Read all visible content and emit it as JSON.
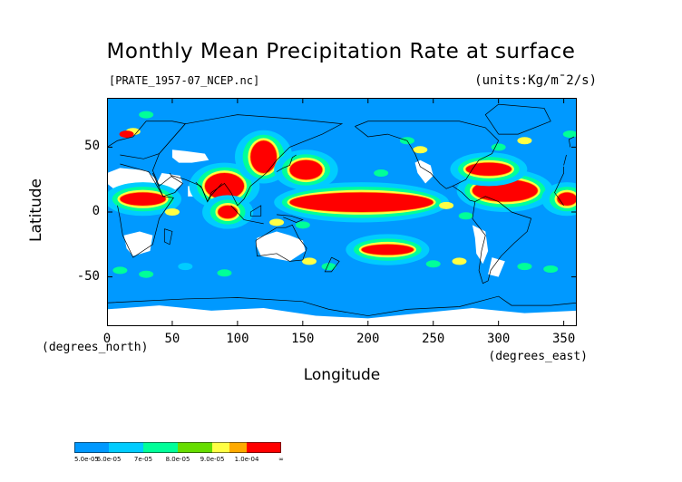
{
  "title": "Monthly Mean Precipitation Rate at surface",
  "subtitle": "[PRATE_1957-07_NCEP.nc]",
  "units": "(units:Kg/m¯2/s)",
  "y_axis": {
    "label": "Latitude",
    "coord": "(degrees_north)",
    "ticks": [
      {
        "value": 50,
        "label": "50"
      },
      {
        "value": 0,
        "label": "0"
      },
      {
        "value": -50,
        "label": "-50"
      }
    ]
  },
  "x_axis": {
    "label": "Longitude",
    "coord": "(degrees_east)",
    "ticks": [
      {
        "value": 0,
        "label": "0"
      },
      {
        "value": 50,
        "label": "50"
      },
      {
        "value": 100,
        "label": "100"
      },
      {
        "value": 150,
        "label": "150"
      },
      {
        "value": 200,
        "label": "200"
      },
      {
        "value": 250,
        "label": "250"
      },
      {
        "value": 300,
        "label": "300"
      },
      {
        "value": 350,
        "label": "350"
      }
    ]
  },
  "map": {
    "lon_range": [
      0,
      360
    ],
    "lat_range": [
      -88,
      88
    ],
    "background": "#0099ff",
    "coastline_color": "#000000",
    "regions": [
      {
        "level": "red",
        "lon": [
          140,
          250
        ],
        "lat": [
          0,
          15
        ]
      },
      {
        "level": "red",
        "lon": [
          75,
          105
        ],
        "lat": [
          10,
          30
        ]
      },
      {
        "level": "red",
        "lon": [
          110,
          130
        ],
        "lat": [
          30,
          55
        ]
      },
      {
        "level": "red",
        "lon": [
          85,
          100
        ],
        "lat": [
          -5,
          5
        ]
      },
      {
        "level": "red",
        "lon": [
          195,
          235
        ],
        "lat": [
          -33,
          -25
        ]
      },
      {
        "level": "red",
        "lon": [
          280,
          330
        ],
        "lat": [
          8,
          25
        ]
      },
      {
        "level": "red",
        "lon": [
          275,
          310
        ],
        "lat": [
          28,
          38
        ]
      },
      {
        "level": "red",
        "lon": [
          10,
          45
        ],
        "lat": [
          5,
          15
        ]
      },
      {
        "level": "red",
        "lon": [
          345,
          360
        ],
        "lat": [
          5,
          15
        ]
      },
      {
        "level": "red",
        "lon": [
          140,
          165
        ],
        "lat": [
          25,
          40
        ]
      }
    ]
  },
  "legend": {
    "labels": [
      "5.0e-05",
      "6.0e-05",
      "7e-05",
      "8.0e-05",
      "9.0e-05",
      "1.0e-04",
      "∞"
    ],
    "colors": [
      "#0099ff",
      "#00ccff",
      "#00ff99",
      "#66dd00",
      "#ffff44",
      "#ffaa00",
      "#ff0000"
    ]
  }
}
